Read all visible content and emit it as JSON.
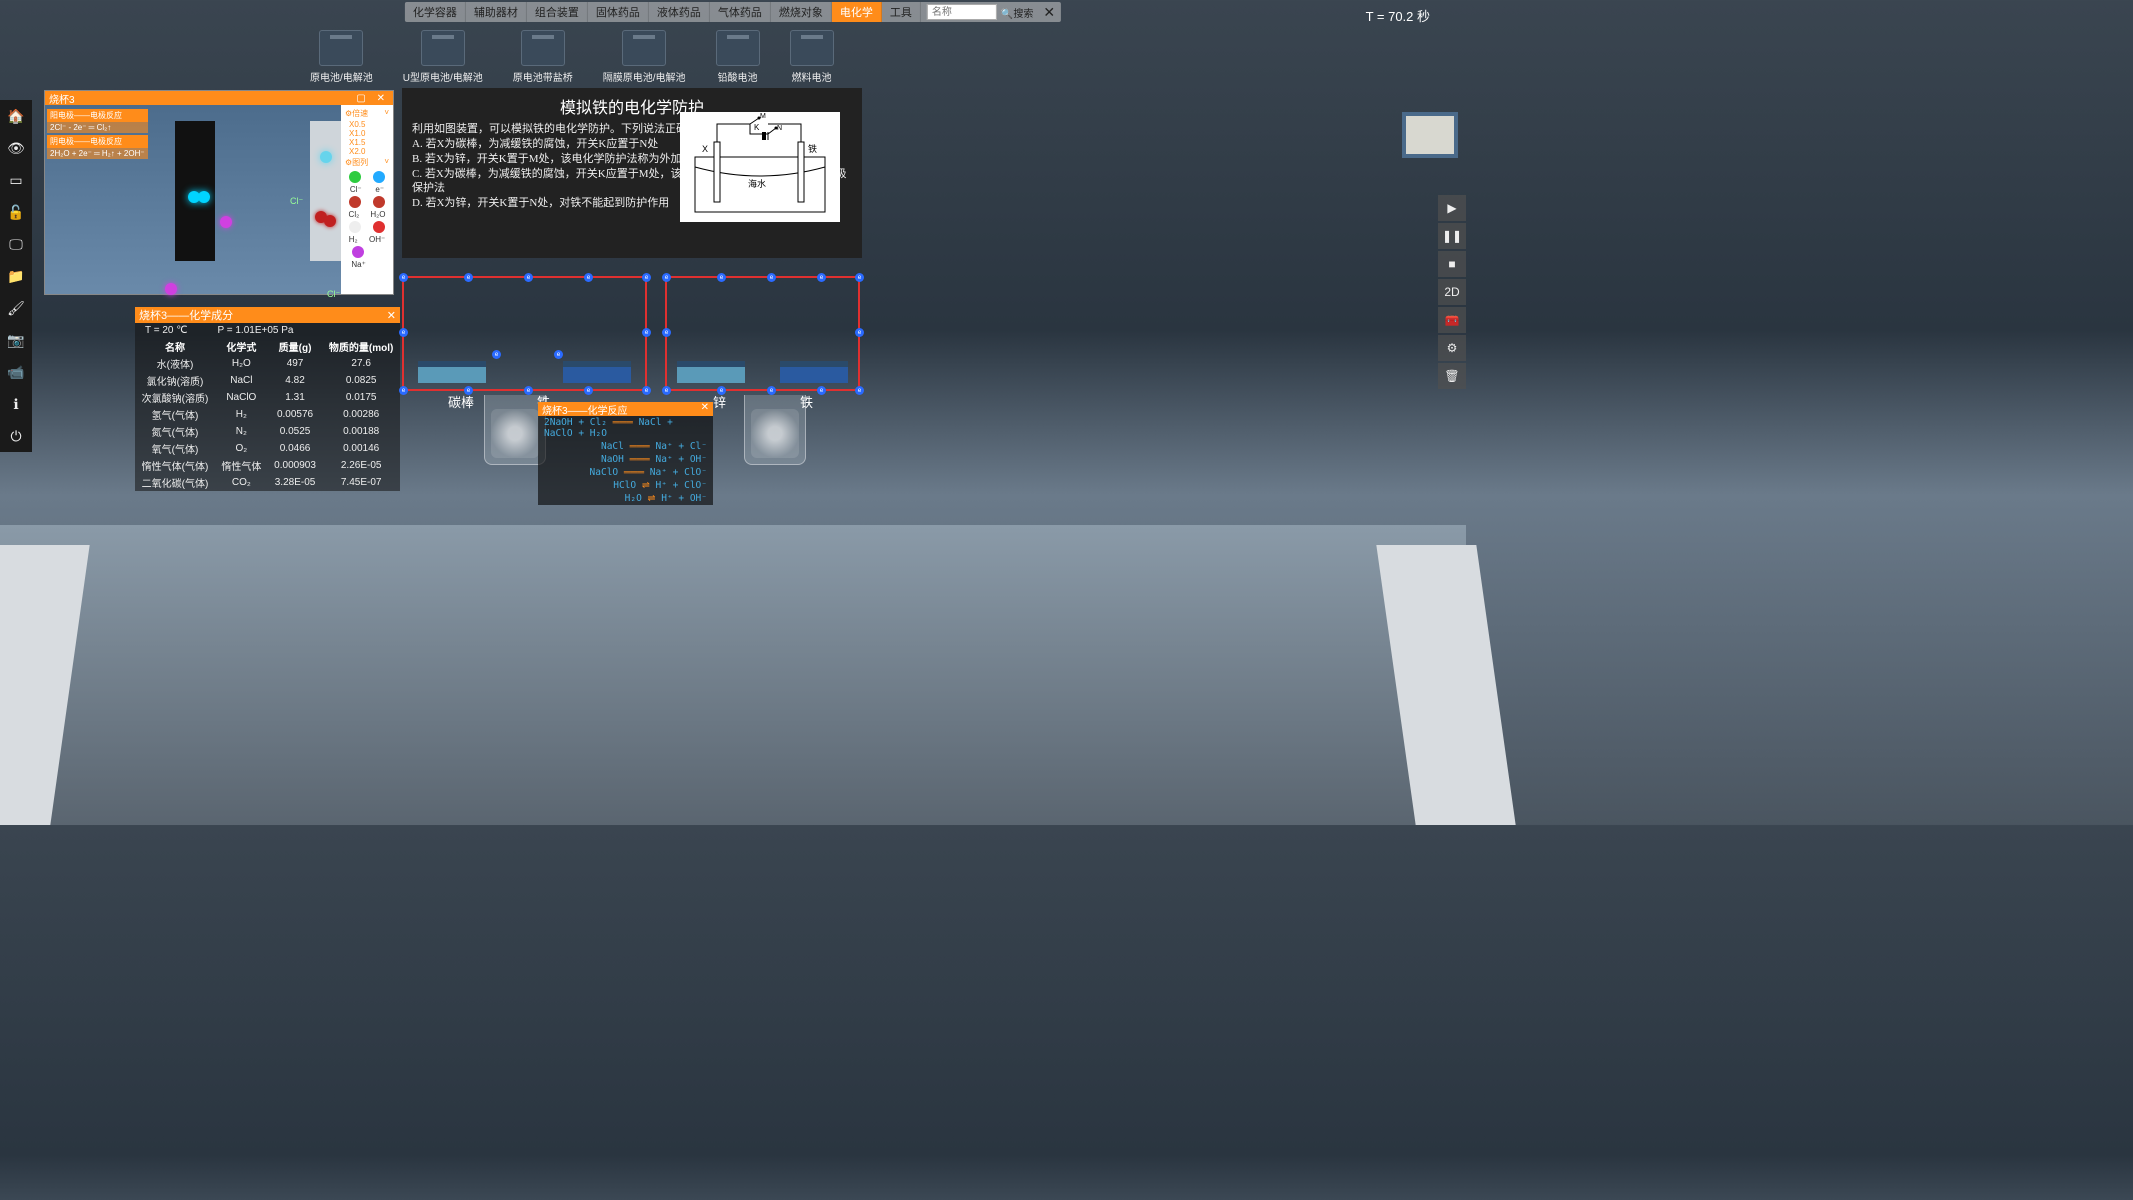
{
  "timer": "T = 70.2 秒",
  "topTabs": [
    "化学容器",
    "辅助器材",
    "组合装置",
    "固体药品",
    "液体药品",
    "气体药品",
    "燃烧对象",
    "电化学",
    "工具"
  ],
  "topActiveIndex": 7,
  "searchPlaceholder": "名称",
  "searchBtn": "🔍搜索",
  "equip": [
    "原电池/电解池",
    "U型原电池/电解池",
    "原电池带盐桥",
    "隔膜原电池/电解池",
    "铅酸电池",
    "燃料电池"
  ],
  "leftIcons": [
    "home",
    "eye",
    "card",
    "unlock",
    "monitor",
    "folder",
    "brush",
    "camera",
    "video",
    "info",
    "power"
  ],
  "rightIcons": [
    "play",
    "pause",
    "stop",
    "2D",
    "toolbox",
    "gear",
    "trash"
  ],
  "particlePanel": {
    "title": "烧杯3",
    "tags": [
      {
        "head": "阳电极——电极反应",
        "body": "2Cl⁻ - 2e⁻ ═ Cl₂↑"
      },
      {
        "head": "阴电极——电极反应",
        "body": "2H₂O + 2e⁻ ═ H₂↑ + 2OH⁻"
      }
    ],
    "speedHeader": "⚙倍速",
    "speeds": [
      "X0.5",
      "X1.0",
      "X1.5",
      "X2.0"
    ],
    "legendHeader": "⚙图列",
    "legend": [
      {
        "c1": "#2ecc40",
        "l1": "Cl⁻",
        "c2": "#22aaff",
        "l2": "e⁻"
      },
      {
        "c1": "#c0392b",
        "l1": "Cl₂",
        "c2": "#c0392b",
        "l2": "H₂O",
        "shape2": "drop"
      },
      {
        "c1": "#eeeeee",
        "l1": "H₂",
        "c2": "#e03030",
        "l2": "OH⁻"
      },
      {
        "c1": "#c040e0",
        "l1": "Na⁺",
        "c2": "",
        "l2": ""
      }
    ]
  },
  "comp": {
    "title": "烧杯3——化学成分",
    "temp": "T = 20 ℃",
    "pressure": "P = 1.01E+05 Pa",
    "headers": [
      "名称",
      "化学式",
      "质量(g)",
      "物质的量(mol)"
    ],
    "rows": [
      [
        "水(液体)",
        "H₂O",
        "497",
        "27.6"
      ],
      [
        "氯化钠(溶质)",
        "NaCl",
        "4.82",
        "0.0825"
      ],
      [
        "次氯酸钠(溶质)",
        "NaClO",
        "1.31",
        "0.0175"
      ],
      [
        "氢气(气体)",
        "H₂",
        "0.00576",
        "0.00286"
      ],
      [
        "氮气(气体)",
        "N₂",
        "0.0525",
        "0.00188"
      ],
      [
        "氧气(气体)",
        "O₂",
        "0.0466",
        "0.00146"
      ],
      [
        "惰性气体(气体)",
        "惰性气体",
        "0.000903",
        "2.26E-05"
      ],
      [
        "二氧化碳(气体)",
        "CO₂",
        "3.28E-05",
        "7.45E-07"
      ]
    ]
  },
  "question": {
    "title": "模拟铁的电化学防护",
    "stem": "利用如图装置，可以模拟铁的电化学防护。下列说法正确的是（　　）",
    "opts": [
      "A. 若X为碳棒，为减缓铁的腐蚀，开关K应置于N处",
      "B. 若X为锌，开关K置于M处，该电化学防护法称为外加电流的阴极保护法",
      "C. 若X为碳棒，为减缓铁的腐蚀，开关K应置于M处，该电化学防护法称为牺牲阳极的阴极保护法",
      "D. 若X为锌，开关K置于N处，对铁不能起到防护作用"
    ],
    "imgLabels": {
      "x": "X",
      "fe": "铁",
      "k": "K",
      "m": "M",
      "n": "N",
      "sea": "海水"
    }
  },
  "appLabels": [
    "碳棒",
    "铁",
    "锌",
    "铁"
  ],
  "react": {
    "title": "烧杯3——化学反应",
    "lines": [
      "2NaOH + Cl₂ ═══ NaCl + NaClO + H₂O",
      "NaCl ═══ Na⁺ + Cl⁻",
      "NaOH ═══ Na⁺ + OH⁻",
      "NaClO ═══ Na⁺ + ClO⁻",
      "HClO ⇌ H⁺ + ClO⁻",
      "H₂O ⇌ H⁺ + OH⁻"
    ]
  },
  "eLabel": "e"
}
